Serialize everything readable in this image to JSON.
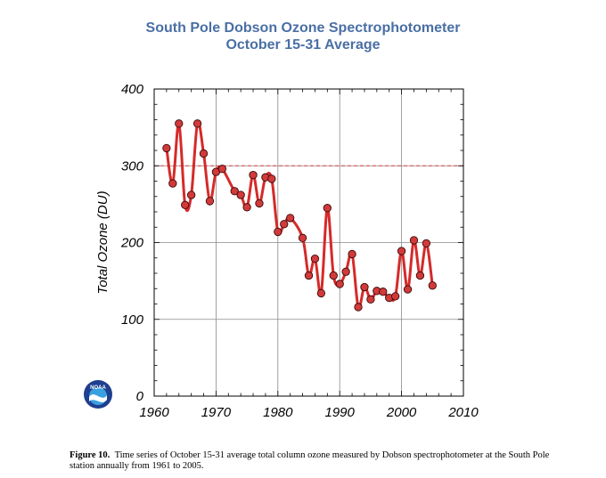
{
  "chart_data": {
    "type": "line",
    "title": "South Pole Dobson Ozone Spectrophotometer",
    "subtitle": "October 15-31 Average",
    "ylabel": "Total Ozone (DU)",
    "xlabel": "",
    "xlim": [
      1960,
      2010
    ],
    "ylim": [
      0,
      400
    ],
    "xticks": [
      "1960",
      "1970",
      "1980",
      "1990",
      "2000",
      "2010"
    ],
    "yticks": [
      "0",
      "100",
      "200",
      "300",
      "400"
    ],
    "grid": true,
    "reference_line": {
      "y": 300,
      "style": "dashed",
      "color": "#d94040"
    },
    "series": [
      {
        "color": "#d62a2a",
        "marker_color": "#d23a3a",
        "x": [
          1962,
          1963,
          1964,
          1965,
          1966,
          1967,
          1968,
          1969,
          1970,
          1971,
          1973,
          1974,
          1975,
          1976,
          1977,
          1978,
          1979,
          1980,
          1981,
          1982,
          1984,
          1985,
          1986,
          1987,
          1988,
          1989,
          1990,
          1991,
          1992,
          1993,
          1994,
          1995,
          1996,
          1997,
          1998,
          1999,
          2000,
          2001,
          2002,
          2003,
          2004,
          2005
        ],
        "y": [
          323,
          277,
          355,
          249,
          262,
          355,
          316,
          254,
          292,
          296,
          267,
          262,
          246,
          288,
          251,
          285,
          283,
          214,
          224,
          232,
          206,
          157,
          179,
          134,
          245,
          157,
          146,
          162,
          185,
          116,
          142,
          126,
          137,
          136,
          128,
          130,
          189,
          139,
          203,
          157,
          199,
          144
        ]
      }
    ]
  },
  "caption": {
    "label": "Figure 10.",
    "text": "Time series of October 15-31 average total column ozone measured by Dobson spectrophotometer at the South Pole station annually from 1961 to 2005."
  },
  "logo": {
    "text": "NOAA",
    "colors": {
      "outer": "#1f3f8f",
      "inner": "#3aa0e0",
      "wave": "#ffffff"
    }
  }
}
